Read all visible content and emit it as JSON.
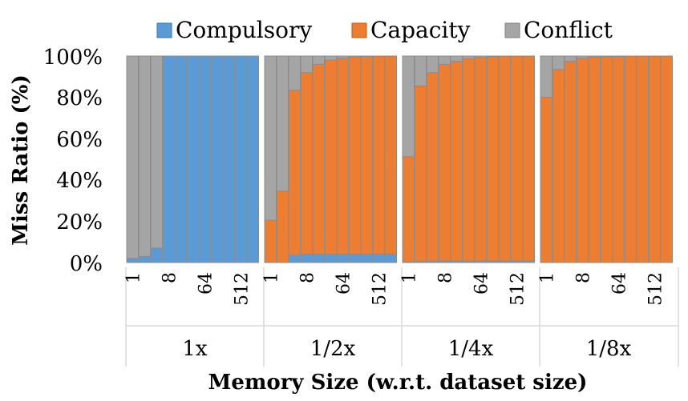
{
  "chart_data": {
    "type": "bar",
    "stacked": true,
    "normalized": true,
    "title": "",
    "xlabel": "Memory Size (w.r.t. dataset size)",
    "ylabel": "Miss Ratio (%)",
    "ylim": [
      0,
      100
    ],
    "y_ticks": [
      "0%",
      "20%",
      "40%",
      "60%",
      "80%",
      "100%"
    ],
    "legend": {
      "placement": "top"
    },
    "series_meta": [
      {
        "name": "Compulsory",
        "color": "#5b9bd5"
      },
      {
        "name": "Capacity",
        "color": "#ed7d31"
      },
      {
        "name": "Conflict",
        "color": "#a5a5a5"
      }
    ],
    "x_tick_labels": [
      "1",
      "8",
      "64",
      "512"
    ],
    "groups": [
      {
        "label": "1x",
        "compulsory": [
          2,
          3,
          7,
          100,
          100,
          100,
          100,
          100,
          100,
          100,
          100
        ],
        "capacity": [
          0,
          0,
          0,
          0,
          0,
          0,
          0,
          0,
          0,
          0,
          0
        ]
      },
      {
        "label": "1/2x",
        "compulsory": [
          0,
          0,
          3.5,
          4,
          4,
          4,
          4,
          4,
          4,
          4,
          4
        ],
        "capacity": [
          20.5,
          34.5,
          80,
          88,
          92,
          94,
          95,
          95.5,
          95.8,
          96,
          96
        ]
      },
      {
        "label": "1/4x",
        "compulsory": [
          0.3,
          0.5,
          0.6,
          0.7,
          0.7,
          0.7,
          0.7,
          0.7,
          0.7,
          0.7,
          0.7
        ],
        "capacity": [
          51,
          85,
          91.4,
          95.3,
          96.8,
          98.1,
          98.6,
          99,
          99.3,
          99.3,
          99.3
        ]
      },
      {
        "label": "1/8x",
        "compulsory": [
          0,
          0,
          0,
          0,
          0,
          0,
          0,
          0,
          0,
          0,
          0
        ],
        "capacity": [
          80,
          93.5,
          97.5,
          99,
          99.5,
          99.7,
          99.8,
          100,
          100,
          100,
          100
        ]
      }
    ]
  }
}
